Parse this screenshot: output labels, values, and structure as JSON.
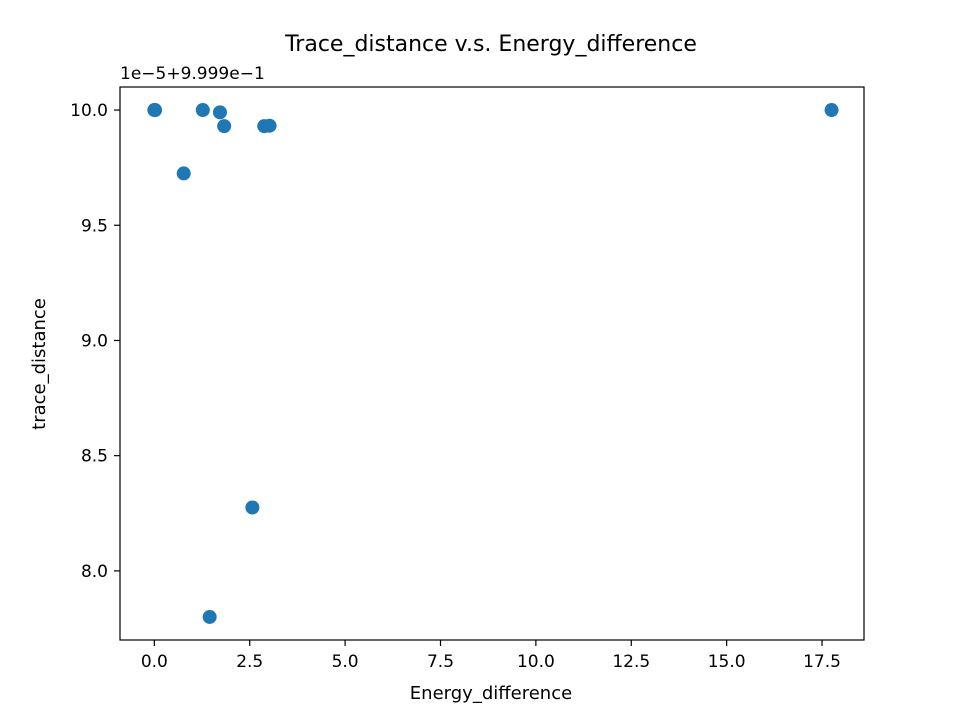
{
  "chart_data": {
    "type": "scatter",
    "title": "Trace_distance v.s. Energy_difference",
    "xlabel": "Energy_difference",
    "ylabel": "trace_distance",
    "y_offset_text": "1e−5+9.999e−1",
    "xlim": [
      -0.9,
      18.6
    ],
    "ylim": [
      7.7,
      10.1
    ],
    "x_ticks": [
      0.0,
      2.5,
      5.0,
      7.5,
      10.0,
      12.5,
      15.0,
      17.5
    ],
    "x_tick_labels": [
      "0.0",
      "2.5",
      "5.0",
      "7.5",
      "10.0",
      "12.5",
      "15.0",
      "17.5"
    ],
    "y_ticks": [
      8.0,
      8.5,
      9.0,
      9.5,
      10.0
    ],
    "y_tick_labels": [
      "8.0",
      "8.5",
      "9.0",
      "9.5",
      "10.0"
    ],
    "grid": false,
    "marker_color": "#1f77b4",
    "series": [
      {
        "points": [
          {
            "x": 0.0,
            "y": 10.0
          },
          {
            "x": 0.02,
            "y": 10.0
          },
          {
            "x": 0.77,
            "y": 9.725
          },
          {
            "x": 1.27,
            "y": 10.0
          },
          {
            "x": 1.45,
            "y": 7.8
          },
          {
            "x": 1.72,
            "y": 9.99
          },
          {
            "x": 1.83,
            "y": 9.93
          },
          {
            "x": 2.57,
            "y": 8.275
          },
          {
            "x": 2.88,
            "y": 9.93
          },
          {
            "x": 3.02,
            "y": 9.932
          },
          {
            "x": 17.75,
            "y": 10.0
          }
        ]
      }
    ]
  }
}
